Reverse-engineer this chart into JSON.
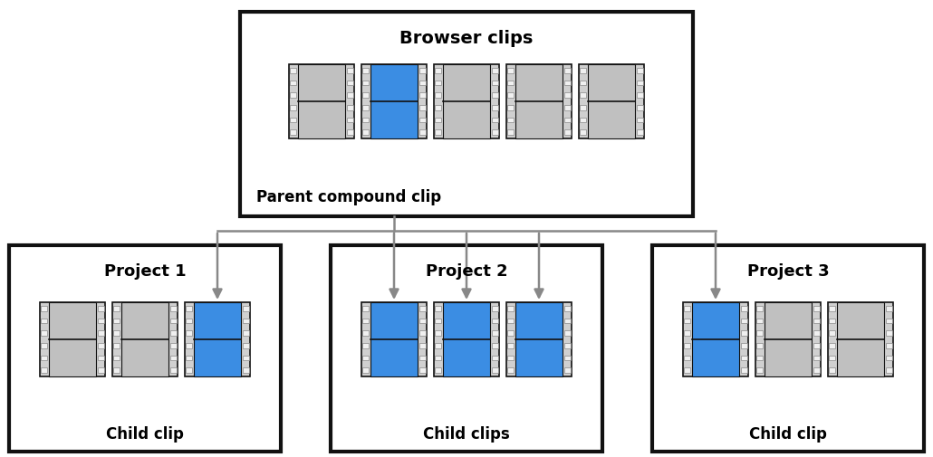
{
  "bg_color": "#ffffff",
  "title": "Browser clips",
  "parent_label": "Parent compound clip",
  "parent_clip_colors": [
    "gray",
    "blue",
    "gray",
    "gray",
    "gray"
  ],
  "projects": [
    {
      "title": "Project 1",
      "label": "Child clip",
      "clips": [
        "gray",
        "gray",
        "blue"
      ]
    },
    {
      "title": "Project 2",
      "label": "Child clips",
      "clips": [
        "blue",
        "blue",
        "blue"
      ]
    },
    {
      "title": "Project 3",
      "label": "Child clip",
      "clips": [
        "blue",
        "gray",
        "gray"
      ]
    }
  ],
  "blue_color": "#3b8de3",
  "gray_color": "#c0c0c0",
  "perf_color": "#f0f0f0",
  "border_color": "#111111",
  "box_border_color": "#111111",
  "arrow_color": "#888888",
  "font_title": 14,
  "font_label": 12,
  "font_project": 13
}
